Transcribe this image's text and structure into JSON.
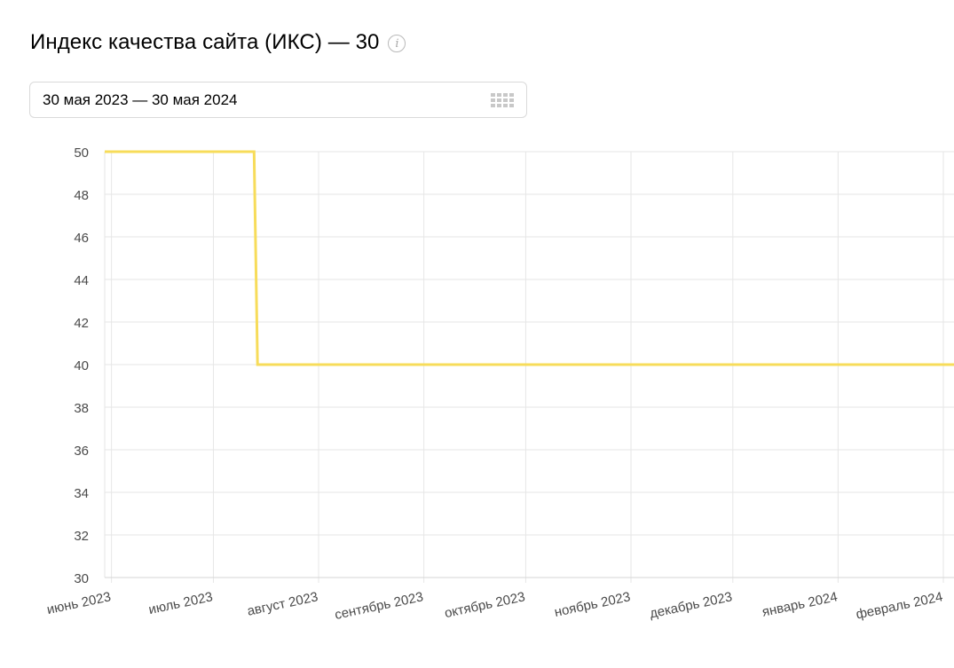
{
  "header": {
    "title": "Индекс качества сайта (ИКС) — 30",
    "info_icon": "info-icon"
  },
  "date_picker": {
    "value": "30 мая 2023 — 30 мая 2024",
    "icon": "calendar-icon"
  },
  "chart_data": {
    "type": "line",
    "x_tick_labels": [
      "июнь 2023",
      "июль 2023",
      "август 2023",
      "сентябрь 2023",
      "октябрь 2023",
      "ноябрь 2023",
      "декабрь 2023",
      "январь 2024",
      "февраль 2024"
    ],
    "y_ticks": [
      30,
      32,
      34,
      36,
      38,
      40,
      42,
      44,
      46,
      48,
      50
    ],
    "ylim": [
      30,
      50
    ],
    "grid": true,
    "series": [
      {
        "color": "#f7dc5a",
        "points": [
          {
            "x": "2023-05-30",
            "y": 50
          },
          {
            "x": "2023-07-13",
            "y": 50
          },
          {
            "x": "2023-07-14",
            "y": 40
          },
          {
            "x": "2024-02-10",
            "y": 40
          }
        ]
      }
    ]
  },
  "colors": {
    "line": "#f7dc5a",
    "grid": "#e6e6e6",
    "axis_text": "#4a4a4a"
  }
}
